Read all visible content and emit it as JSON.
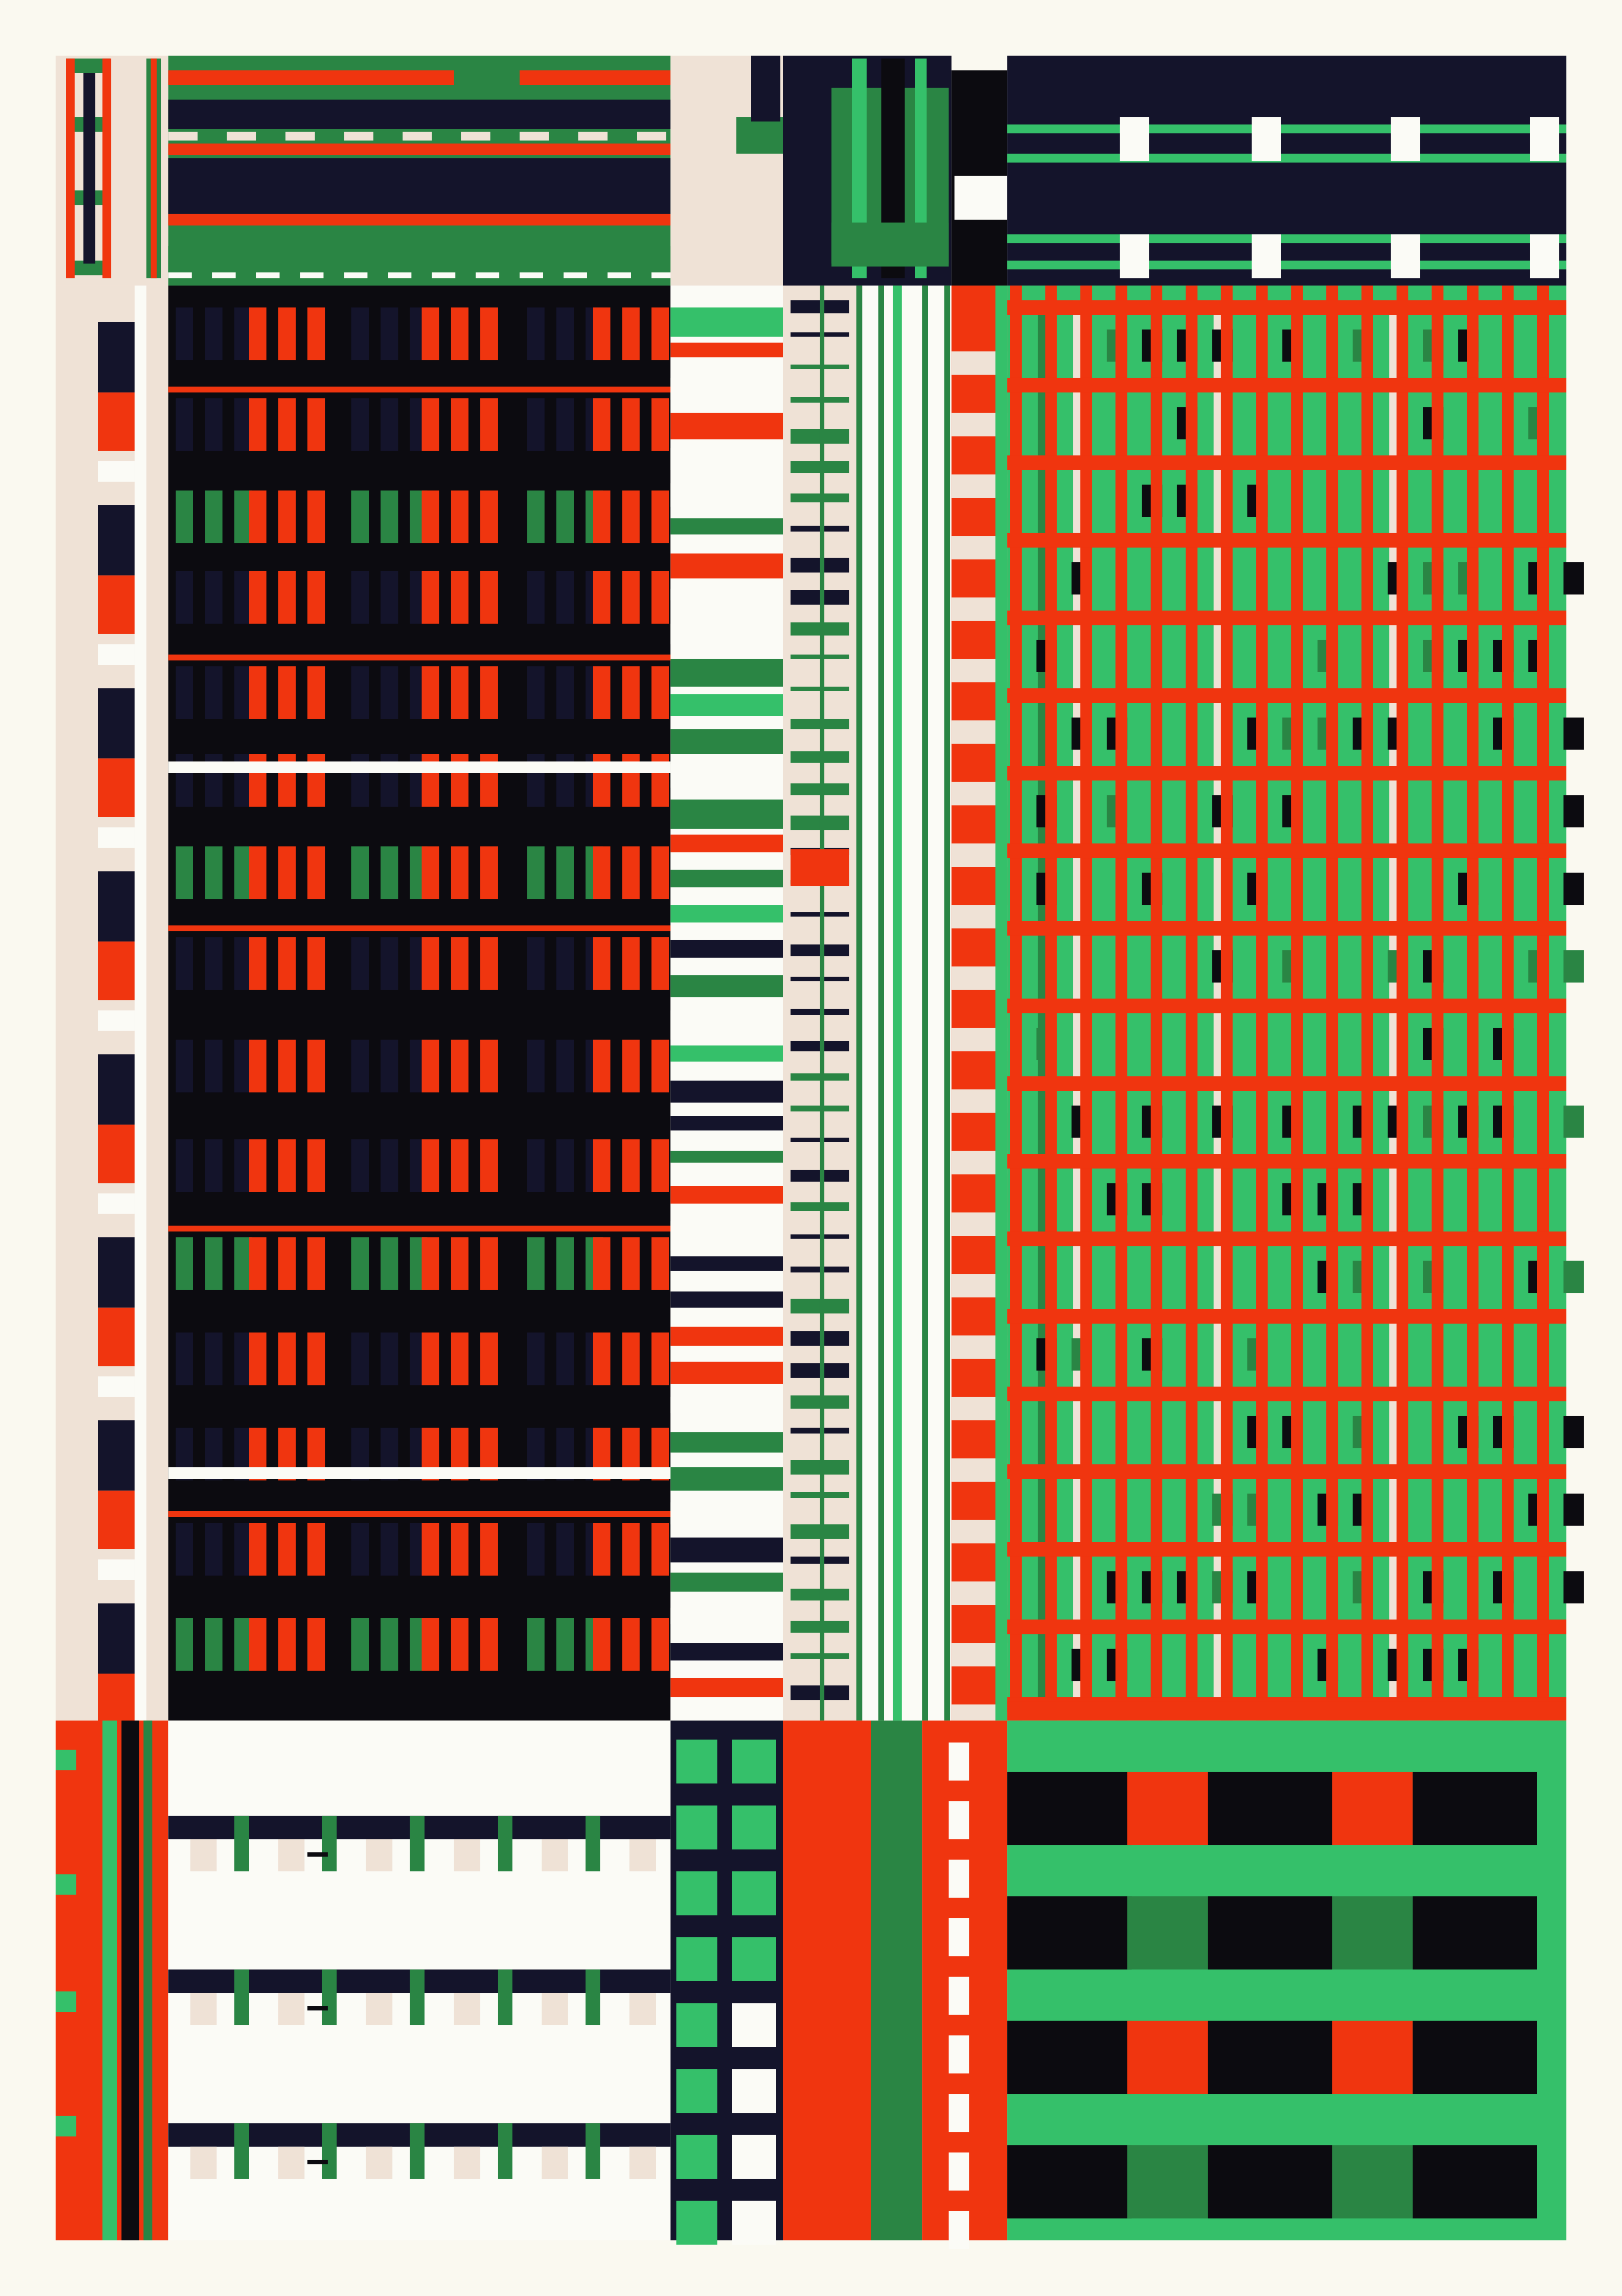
{
  "artwork": {
    "palette": {
      "background": "#faf9f0",
      "red": "#f0350f",
      "green": "#35c06a",
      "dark_green": "#2a8544",
      "navy": "#14142b",
      "black": "#0c0b10",
      "beige": "#efe2d6",
      "white": "#fbfbf6"
    }
  }
}
